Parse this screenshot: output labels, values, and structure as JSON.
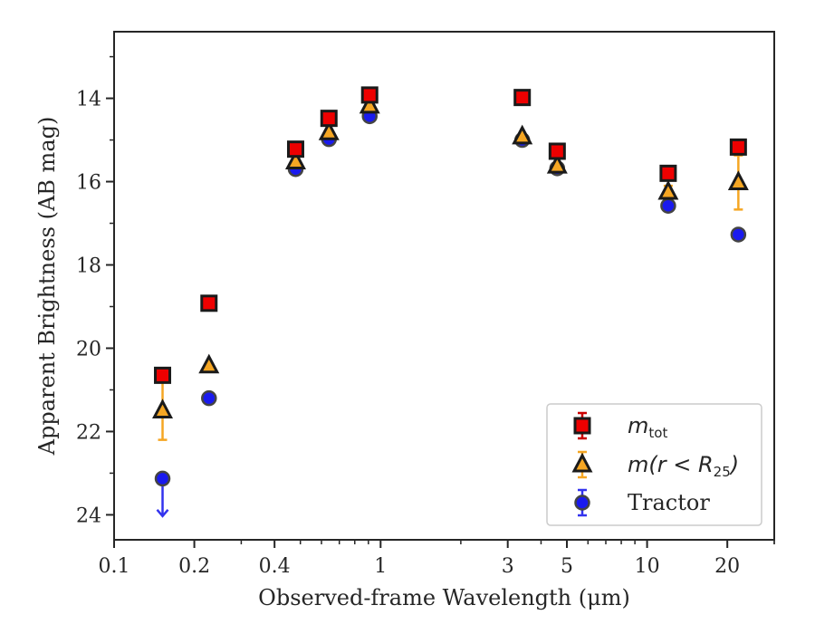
{
  "chart_data": {
    "type": "scatter",
    "xlabel": "Observed-frame Wavelength (μm)",
    "ylabel": "Apparent Brightness (AB mag)",
    "x_scale": "log",
    "xlim": [
      0.1,
      30
    ],
    "ylim": [
      24.6,
      12.4
    ],
    "y_inverted": true,
    "x_ticks": [
      {
        "value": 0.1,
        "label": "0.1"
      },
      {
        "value": 0.2,
        "label": "0.2"
      },
      {
        "value": 0.4,
        "label": "0.4"
      },
      {
        "value": 1,
        "label": "1"
      },
      {
        "value": 3,
        "label": "3"
      },
      {
        "value": 5,
        "label": "5"
      },
      {
        "value": 10,
        "label": "10"
      },
      {
        "value": 20,
        "label": "20"
      }
    ],
    "y_ticks": [
      {
        "value": 14,
        "label": "14"
      },
      {
        "value": 16,
        "label": "16"
      },
      {
        "value": 18,
        "label": "18"
      },
      {
        "value": 20,
        "label": "20"
      },
      {
        "value": 22,
        "label": "22"
      },
      {
        "value": 24,
        "label": "24"
      }
    ],
    "grid": false,
    "legend": {
      "position": "lower-right"
    },
    "series": [
      {
        "name": "m_tot",
        "legend_main": "m",
        "legend_sub": "tot",
        "marker": "square",
        "fill": "#ee0000",
        "error_color": "#cc0000",
        "points": [
          {
            "x": 0.152,
            "y": 20.65,
            "err": 0.05
          },
          {
            "x": 0.227,
            "y": 18.92,
            "err": 0.03
          },
          {
            "x": 0.48,
            "y": 15.22,
            "err": 0.02
          },
          {
            "x": 0.64,
            "y": 14.48,
            "err": 0.02
          },
          {
            "x": 0.91,
            "y": 13.92,
            "err": 0.02
          },
          {
            "x": 3.4,
            "y": 13.98,
            "err": 0.02
          },
          {
            "x": 4.6,
            "y": 15.27,
            "err": 0.02
          },
          {
            "x": 12.0,
            "y": 15.8,
            "err": 0.05
          },
          {
            "x": 22.0,
            "y": 15.17,
            "err": 0.05
          }
        ]
      },
      {
        "name": "m(r < R25)",
        "legend_main": "m(r < R",
        "legend_sub": "25",
        "legend_tail": ")",
        "marker": "triangle",
        "fill": "#f5a623",
        "error_color": "#f5a623",
        "points": [
          {
            "x": 0.152,
            "y": 21.5,
            "err": 0.7
          },
          {
            "x": 0.227,
            "y": 20.42,
            "err": 0.05
          },
          {
            "x": 0.48,
            "y": 15.52,
            "err": 0.05
          },
          {
            "x": 0.64,
            "y": 14.82,
            "err": 0.05
          },
          {
            "x": 0.91,
            "y": 14.18,
            "err": 0.05
          },
          {
            "x": 3.4,
            "y": 14.92,
            "err": 0.05
          },
          {
            "x": 4.6,
            "y": 15.62,
            "err": 0.05
          },
          {
            "x": 12.0,
            "y": 16.25,
            "err": 0.15
          },
          {
            "x": 22.0,
            "y": 16.02,
            "err": 0.65
          }
        ]
      },
      {
        "name": "Tractor",
        "legend_main": "Tractor",
        "marker": "circle",
        "fill": "#1a1aee",
        "error_color": "#3333ee",
        "points": [
          {
            "x": 0.152,
            "y": 23.13,
            "err": 0,
            "upper_limit": true
          },
          {
            "x": 0.227,
            "y": 21.2,
            "err": 0.03
          },
          {
            "x": 0.48,
            "y": 15.7,
            "err": 0.02
          },
          {
            "x": 0.64,
            "y": 14.98,
            "err": 0.02
          },
          {
            "x": 0.91,
            "y": 14.43,
            "err": 0.02
          },
          {
            "x": 3.4,
            "y": 15.0,
            "err": 0.02
          },
          {
            "x": 4.6,
            "y": 15.68,
            "err": 0.02
          },
          {
            "x": 12.0,
            "y": 16.58,
            "err": 0.03
          },
          {
            "x": 22.0,
            "y": 17.27,
            "err": 0.04
          }
        ]
      }
    ]
  }
}
